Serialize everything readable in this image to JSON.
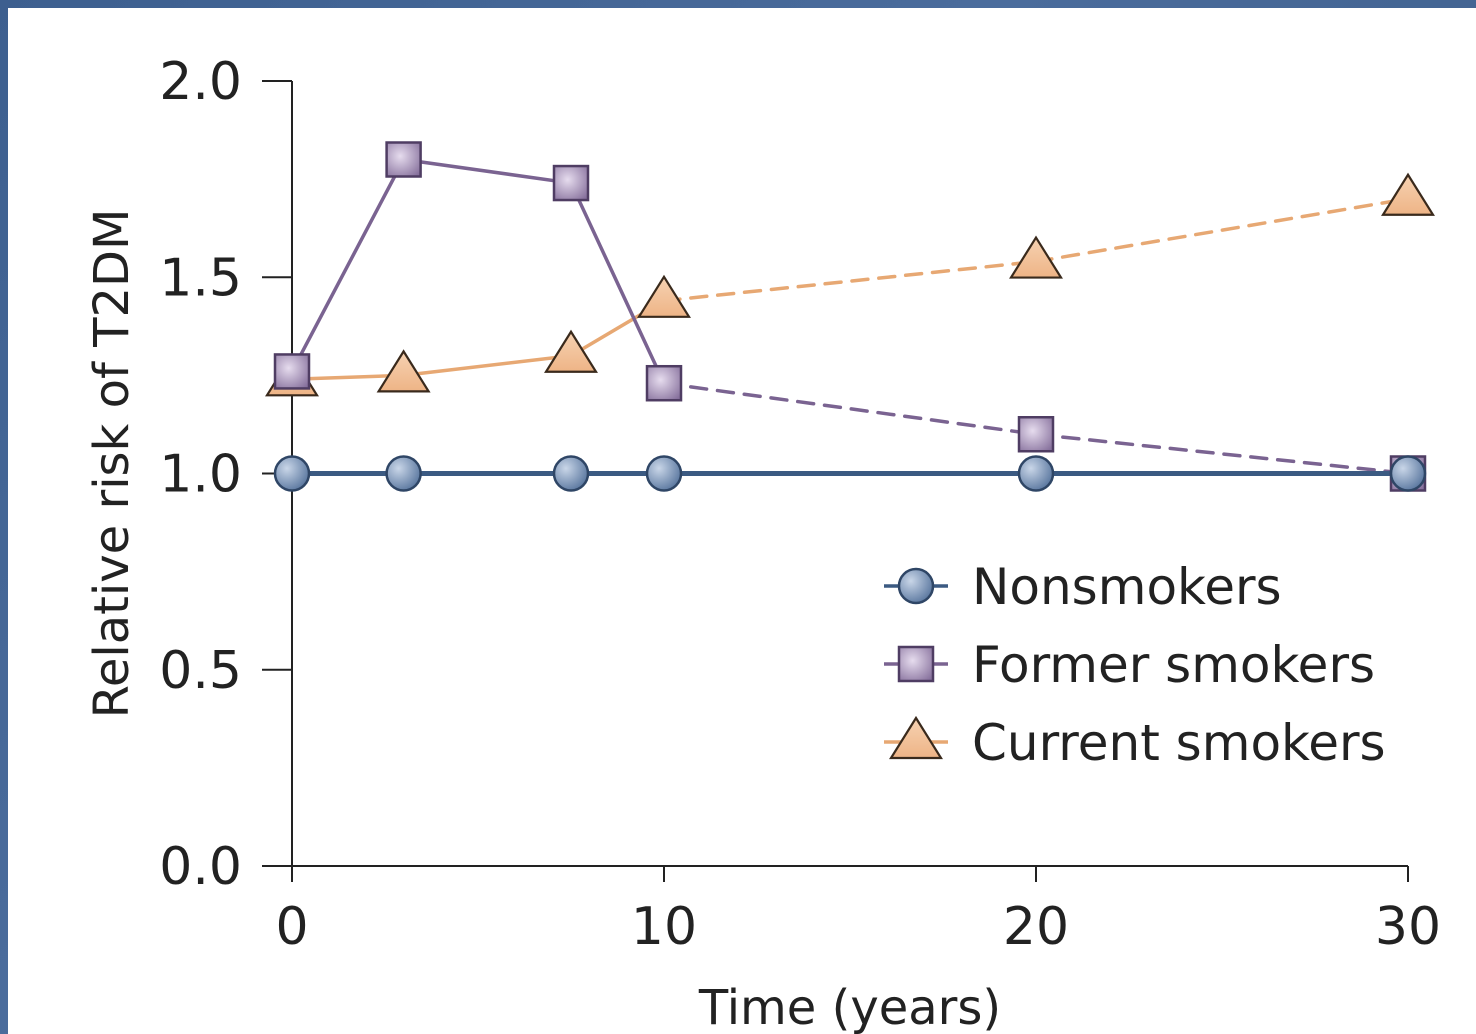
{
  "chart_data": {
    "type": "line",
    "title": "",
    "xlabel": "Time (years)",
    "ylabel": "Relative risk of T2DM",
    "xlim": [
      0,
      30
    ],
    "ylim": [
      0.0,
      2.0
    ],
    "xticks": [
      0,
      10,
      20,
      30
    ],
    "yticks": [
      0.0,
      0.5,
      1.0,
      1.5,
      2.0
    ],
    "xtick_labels": [
      "0",
      "10",
      "20",
      "30"
    ],
    "ytick_labels": [
      "0.0",
      "0.5",
      "1.0",
      "1.5",
      "2.0"
    ],
    "grid": false,
    "legend_position": "lower-right",
    "series": [
      {
        "name": "Nonsmokers",
        "marker": "circle",
        "color": "#3b5a82",
        "fill": "#6a86ad",
        "x": [
          0,
          3,
          7.5,
          10,
          20,
          30
        ],
        "y": [
          1.0,
          1.0,
          1.0,
          1.0,
          1.0,
          1.0
        ],
        "dashed_from_index": null
      },
      {
        "name": "Former smokers",
        "marker": "square",
        "color": "#7a6391",
        "fill": "#9c86ae",
        "x": [
          0,
          3,
          7.5,
          10,
          20,
          30
        ],
        "y": [
          1.26,
          1.8,
          1.74,
          1.23,
          1.1,
          1.0
        ],
        "dashed_from_index": 3
      },
      {
        "name": "Current smokers",
        "marker": "triangle",
        "color": "#e7a873",
        "fill": "#f2c29a",
        "x": [
          0,
          3,
          7.5,
          10,
          20,
          30
        ],
        "y": [
          1.24,
          1.25,
          1.3,
          1.44,
          1.54,
          1.7
        ],
        "dashed_from_index": 3
      }
    ]
  }
}
